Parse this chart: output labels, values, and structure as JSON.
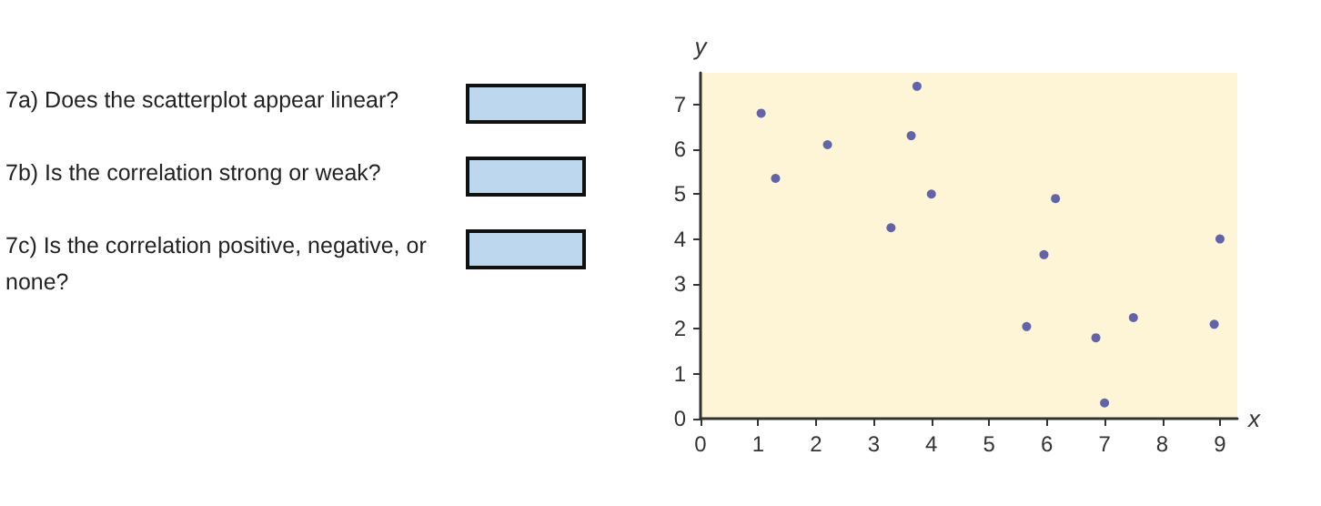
{
  "chart_data": {
    "type": "scatter",
    "x": [
      1.05,
      1.3,
      2.2,
      3.3,
      3.65,
      3.75,
      4.0,
      5.65,
      5.95,
      6.15,
      6.85,
      7.0,
      7.5,
      8.9,
      9.0
    ],
    "values": [
      6.8,
      5.35,
      6.1,
      4.25,
      6.3,
      7.4,
      5.0,
      2.05,
      3.65,
      4.9,
      1.8,
      0.35,
      2.25,
      2.1,
      4.0
    ],
    "color": "#3b3f9e",
    "marker": "circle",
    "grid": false,
    "xlabel": "x",
    "ylabel": "y",
    "xlim": [
      0,
      9.3
    ],
    "ylim": [
      0,
      7.7
    ],
    "xticks": [
      0,
      1,
      2,
      3,
      4,
      5,
      6,
      7,
      8,
      9
    ],
    "yticks": [
      0,
      1,
      2,
      3,
      4,
      5,
      6,
      7
    ],
    "annotations": [
      "7a) Does the scatterplot appear linear?",
      "7b) Is the correlation strong or weak?",
      "7c) Is the correlation positive, negative, or none?"
    ]
  }
}
